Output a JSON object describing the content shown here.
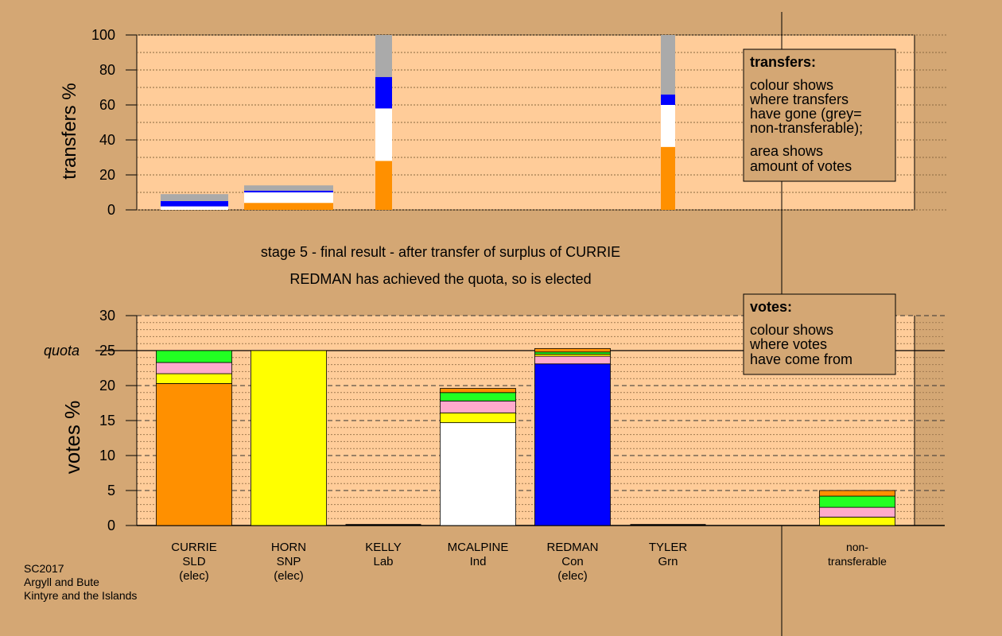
{
  "colors": {
    "background": "#d4a774",
    "panel": "#ffcc99",
    "legend_box": "#d4a774",
    "parties": {
      "SLD": "#ff9000",
      "SNP": "#ffff00",
      "Lab": "#ff0000",
      "Ind": "#ffffff",
      "Con": "#0000ff",
      "Grn": "#22ff22",
      "nontransferable": "#aaaaaa"
    }
  },
  "stage_title": "stage 5 - final result - after transfer of surplus of CURRIE",
  "stage_subtitle": "REDMAN has achieved the quota, so is elected",
  "source": {
    "line1": "SC2017",
    "line2": "Argyll and Bute",
    "line3": "Kintyre and the Islands"
  },
  "transfers_legend": {
    "title": "transfers:",
    "line1": "colour shows",
    "line2": "where transfers",
    "line3": "have gone (grey=",
    "line4": "non-transferable);",
    "line5": "area shows",
    "line6": "amount of votes"
  },
  "votes_legend": {
    "title": "votes:",
    "line1": "colour shows",
    "line2": "where votes",
    "line3": "have come from"
  },
  "candidates": [
    {
      "name": "CURRIE",
      "party": "SLD",
      "status": "(elec)"
    },
    {
      "name": "HORN",
      "party": "SNP",
      "status": "(elec)"
    },
    {
      "name": "KELLY",
      "party": "Lab",
      "status": ""
    },
    {
      "name": "MCALPINE",
      "party": "Ind",
      "status": ""
    },
    {
      "name": "REDMAN",
      "party": "Con",
      "status": "(elec)"
    },
    {
      "name": "TYLER",
      "party": "Grn",
      "status": ""
    },
    {
      "name": "non-",
      "party": "transferable",
      "status": ""
    }
  ],
  "chart_data": [
    {
      "type": "bar",
      "title": "transfers",
      "ylabel": "transfers %",
      "ylim": [
        0,
        100
      ],
      "yticks": [
        0,
        20,
        40,
        60,
        80,
        100
      ],
      "bars": [
        {
          "category": "CURRIE",
          "width_share": 0.1,
          "segments": [
            {
              "color": "#ffffff",
              "from": 0,
              "to": 2
            },
            {
              "color": "#0000ff",
              "from": 2,
              "to": 5
            },
            {
              "color": "#aaaaaa",
              "from": 5,
              "to": 9
            }
          ]
        },
        {
          "category": "HORN",
          "width_share": 0.1,
          "segments": [
            {
              "color": "#ff9000",
              "from": 0,
              "to": 4
            },
            {
              "color": "#ffffff",
              "from": 4,
              "to": 10
            },
            {
              "color": "#0000ff",
              "from": 10,
              "to": 11
            },
            {
              "color": "#aaaaaa",
              "from": 11,
              "to": 14
            }
          ]
        },
        {
          "category": "KELLY",
          "width_share": 0.02,
          "segments": [
            {
              "color": "#ff9000",
              "from": 0,
              "to": 28
            },
            {
              "color": "#ffffff",
              "from": 28,
              "to": 58
            },
            {
              "color": "#0000ff",
              "from": 58,
              "to": 76
            },
            {
              "color": "#aaaaaa",
              "from": 76,
              "to": 100
            }
          ]
        },
        {
          "category": "TYLER",
          "width_share": 0.02,
          "segments": [
            {
              "color": "#ff9000",
              "from": 0,
              "to": 36
            },
            {
              "color": "#ffffff",
              "from": 36,
              "to": 60
            },
            {
              "color": "#0000ff",
              "from": 60,
              "to": 66
            },
            {
              "color": "#aaaaaa",
              "from": 66,
              "to": 100
            }
          ]
        }
      ]
    },
    {
      "type": "bar",
      "title": "votes",
      "ylabel": "votes %",
      "ylim": [
        0,
        30
      ],
      "yticks": [
        0,
        5,
        10,
        15,
        20,
        25,
        30
      ],
      "quota": 25,
      "quota_label": "quota",
      "bars": [
        {
          "category": "CURRIE",
          "segments": [
            {
              "color": "#ff9000",
              "from": 0,
              "to": 20.3
            },
            {
              "color": "#ffff00",
              "from": 20.3,
              "to": 21.7
            },
            {
              "color": "#ffaacc",
              "from": 21.7,
              "to": 23.3
            },
            {
              "color": "#22ff22",
              "from": 23.3,
              "to": 25.0
            }
          ]
        },
        {
          "category": "HORN",
          "segments": [
            {
              "color": "#ffff00",
              "from": 0,
              "to": 25.0
            }
          ]
        },
        {
          "category": "KELLY",
          "segments": []
        },
        {
          "category": "MCALPINE",
          "segments": [
            {
              "color": "#ffffff",
              "from": 0,
              "to": 14.7
            },
            {
              "color": "#ffff00",
              "from": 14.7,
              "to": 16.1
            },
            {
              "color": "#ffaacc",
              "from": 16.1,
              "to": 17.8
            },
            {
              "color": "#22ff22",
              "from": 17.8,
              "to": 19.0
            },
            {
              "color": "#ff9000",
              "from": 19.0,
              "to": 19.6
            }
          ]
        },
        {
          "category": "REDMAN",
          "segments": [
            {
              "color": "#0000ff",
              "from": 0,
              "to": 23.1
            },
            {
              "color": "#ffaacc",
              "from": 23.1,
              "to": 24.2
            },
            {
              "color": "#ffff00",
              "from": 24.2,
              "to": 24.5
            },
            {
              "color": "#22ff22",
              "from": 24.5,
              "to": 24.8
            },
            {
              "color": "#ff9000",
              "from": 24.8,
              "to": 25.3
            }
          ]
        },
        {
          "category": "TYLER",
          "segments": []
        },
        {
          "category": "non-transferable",
          "segments": [
            {
              "color": "#ffff00",
              "from": 0,
              "to": 1.2
            },
            {
              "color": "#ffaacc",
              "from": 1.2,
              "to": 2.6
            },
            {
              "color": "#22ff22",
              "from": 2.6,
              "to": 4.2
            },
            {
              "color": "#ff9000",
              "from": 4.2,
              "to": 5.0
            }
          ]
        }
      ]
    }
  ]
}
